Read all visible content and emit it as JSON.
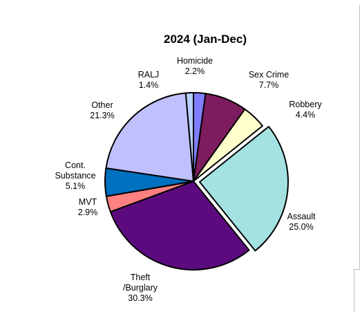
{
  "chart_data": {
    "type": "pie",
    "title": "2024 (Jan-Dec)",
    "slices": [
      {
        "label": [
          "Homicide"
        ],
        "value": 2.2,
        "value_label": "2.2%",
        "color": "#7f7fff",
        "exploded": false
      },
      {
        "label": [
          "Sex Crime"
        ],
        "value": 7.7,
        "value_label": "7.7%",
        "color": "#7d1c5e",
        "exploded": false
      },
      {
        "label": [
          "Robbery"
        ],
        "value": 4.4,
        "value_label": "4.4%",
        "color": "#ffffcc",
        "exploded": false
      },
      {
        "label": [
          "Assault"
        ],
        "value": 25.0,
        "value_label": "25.0%",
        "color": "#a4e2e2",
        "exploded": true
      },
      {
        "label": [
          "Theft",
          "/Burglary"
        ],
        "value": 30.3,
        "value_label": "30.3%",
        "color": "#5c0b7f",
        "exploded": false
      },
      {
        "label": [
          "MVT"
        ],
        "value": 2.9,
        "value_label": "2.9%",
        "color": "#ff8080",
        "exploded": false
      },
      {
        "label": [
          "Cont.",
          "Substance"
        ],
        "value": 5.1,
        "value_label": "5.1%",
        "color": "#0070c0",
        "exploded": false
      },
      {
        "label": [
          "Other"
        ],
        "value": 21.3,
        "value_label": "21.3%",
        "color": "#c0c0ff",
        "exploded": false
      },
      {
        "label": [
          "RALJ"
        ],
        "value": 1.4,
        "value_label": "1.4%",
        "color": "#b8d0ff",
        "exploded": false
      }
    ],
    "start": "12 o'clock",
    "direction": "clockwise",
    "legend": "none"
  }
}
